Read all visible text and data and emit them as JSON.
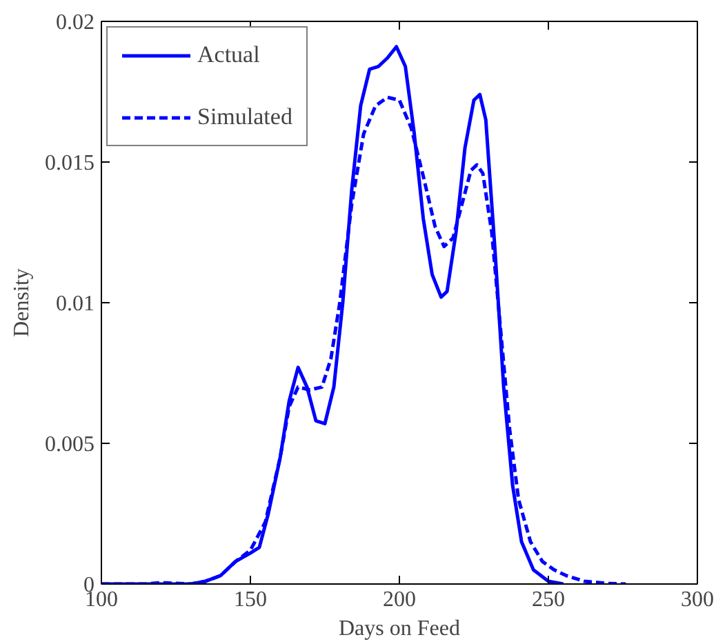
{
  "chart_data": {
    "type": "line",
    "xlabel": "Days on Feed",
    "ylabel": "Density",
    "xlim": [
      100,
      300
    ],
    "ylim": [
      0,
      0.02
    ],
    "xticks": [
      100,
      150,
      200,
      250,
      300
    ],
    "yticks": [
      0,
      0.005,
      0.01,
      0.015,
      0.02
    ],
    "grid": false,
    "legend": "top left",
    "marker": "none",
    "series": [
      {
        "name": "Actual",
        "color": "#0000ff",
        "line_style": "solid",
        "x": [
          100,
          130,
          135,
          140,
          145,
          150,
          153,
          156,
          160,
          163,
          166,
          169,
          172,
          175,
          178,
          181,
          184,
          187,
          190,
          193,
          196,
          199,
          202,
          205,
          208,
          211,
          214,
          216,
          219,
          222,
          225,
          227,
          229,
          232,
          235,
          238,
          241,
          245,
          250,
          255
        ],
        "values": [
          0,
          0,
          0.0001,
          0.0003,
          0.0008,
          0.0011,
          0.0013,
          0.0025,
          0.0045,
          0.0065,
          0.0077,
          0.007,
          0.0058,
          0.0057,
          0.007,
          0.01,
          0.014,
          0.017,
          0.0183,
          0.0184,
          0.0187,
          0.0191,
          0.0184,
          0.016,
          0.013,
          0.011,
          0.0102,
          0.0104,
          0.0125,
          0.0155,
          0.0172,
          0.0174,
          0.0165,
          0.012,
          0.007,
          0.0035,
          0.0015,
          0.0005,
          0.0001,
          0
        ]
      },
      {
        "name": "Simulated",
        "color": "#0000ff",
        "line_style": "dashed",
        "x": [
          100,
          115,
          120,
          130,
          135,
          140,
          145,
          150,
          155,
          160,
          163,
          166,
          170,
          174,
          177,
          180,
          184,
          188,
          192,
          196,
          200,
          204,
          208,
          212,
          215,
          218,
          221,
          224,
          226,
          228,
          231,
          234,
          237,
          240,
          244,
          248,
          252,
          256,
          262,
          270,
          276
        ],
        "values": [
          0,
          0,
          5e-05,
          0,
          0.0001,
          0.0003,
          0.0008,
          0.0012,
          0.0022,
          0.0045,
          0.0063,
          0.007,
          0.0069,
          0.007,
          0.008,
          0.01,
          0.0135,
          0.016,
          0.017,
          0.0173,
          0.0172,
          0.0162,
          0.0145,
          0.0127,
          0.012,
          0.0123,
          0.0135,
          0.0147,
          0.0149,
          0.0146,
          0.0125,
          0.009,
          0.0055,
          0.003,
          0.0015,
          0.0008,
          0.0005,
          0.0003,
          0.0001,
          2e-05,
          0
        ]
      }
    ]
  }
}
